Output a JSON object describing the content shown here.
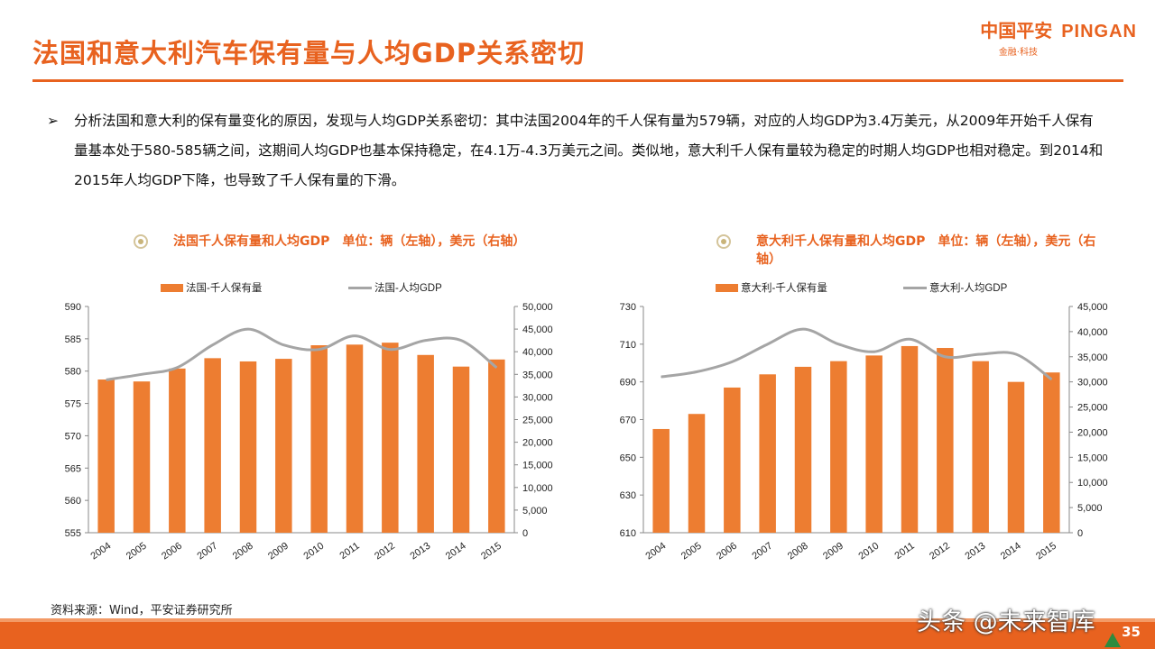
{
  "header": {
    "title": "法国和意大利汽车保有量与人均GDP关系密切",
    "logo_cn": "中国平安",
    "logo_en": "PINGAN",
    "logo_sub": "金融·科技"
  },
  "bullet": {
    "marker": "➢",
    "text": "分析法国和意大利的保有量变化的原因，发现与人均GDP关系密切：其中法国2004年的千人保有量为579辆，对应的人均GDP为3.4万美元，从2009年开始千人保有量基本处于580-585辆之间，这期间人均GDP也基本保持稳定，在4.1万-4.3万美元之间。类似地，意大利千人保有量较为稳定的时期人均GDP也相对稳定。到2014和2015年人均GDP下降，也导致了千人保有量的下滑。"
  },
  "chart_titles": {
    "france": "法国千人保有量和人均GDP　单位：辆（左轴），美元（右轴）",
    "italy": "意大利千人保有量和人均GDP　单位：辆（左轴），美元（右轴）"
  },
  "colors": {
    "accent": "#E8621F",
    "bar": "#ED7D31",
    "line": "#A5A5A5"
  },
  "chart_data": [
    {
      "type": "bar",
      "id": "france",
      "categories": [
        "2004",
        "2005",
        "2006",
        "2007",
        "2008",
        "2009",
        "2010",
        "2011",
        "2012",
        "2013",
        "2014",
        "2015"
      ],
      "series": [
        {
          "name": "法国-千人保有量",
          "axis": "left",
          "type": "bar",
          "values": [
            578.7,
            578.4,
            580.4,
            582.0,
            581.5,
            581.9,
            584.0,
            584.1,
            584.4,
            582.5,
            580.7,
            581.8
          ]
        },
        {
          "name": "法国-人均GDP",
          "axis": "right",
          "type": "line",
          "values": [
            33800,
            35000,
            36500,
            41500,
            45000,
            41500,
            40500,
            43500,
            40500,
            42500,
            42500,
            36500
          ]
        }
      ],
      "y_left": {
        "min": 555,
        "max": 590,
        "ticks": [
          555,
          560,
          565,
          570,
          575,
          580,
          585,
          590
        ],
        "labels": [
          "555",
          "560",
          "565",
          "570",
          "575",
          "580",
          "585",
          "590"
        ]
      },
      "y_right": {
        "min": 0,
        "max": 50000,
        "ticks": [
          0,
          5000,
          10000,
          15000,
          20000,
          25000,
          30000,
          35000,
          40000,
          45000,
          50000
        ],
        "labels": [
          "0",
          "5,000",
          "10,000",
          "15,000",
          "20,000",
          "25,000",
          "30,000",
          "35,000",
          "40,000",
          "45,000",
          "50,000"
        ]
      },
      "legend": "top"
    },
    {
      "type": "bar",
      "id": "italy",
      "categories": [
        "2004",
        "2005",
        "2006",
        "2007",
        "2008",
        "2009",
        "2010",
        "2011",
        "2012",
        "2013",
        "2014",
        "2015"
      ],
      "series": [
        {
          "name": "意大利-千人保有量",
          "axis": "left",
          "type": "bar",
          "values": [
            665,
            673,
            687,
            694,
            698,
            701,
            704,
            709,
            708,
            701,
            690,
            695
          ]
        },
        {
          "name": "意大利-人均GDP",
          "axis": "right",
          "type": "line",
          "values": [
            31000,
            32000,
            34000,
            37500,
            40500,
            37500,
            36000,
            38500,
            35000,
            35500,
            35500,
            30500
          ]
        }
      ],
      "y_left": {
        "min": 610,
        "max": 730,
        "ticks": [
          610,
          630,
          650,
          670,
          690,
          710,
          730
        ],
        "labels": [
          "610",
          "630",
          "650",
          "670",
          "690",
          "710",
          "730"
        ]
      },
      "y_right": {
        "min": 0,
        "max": 45000,
        "ticks": [
          0,
          5000,
          10000,
          15000,
          20000,
          25000,
          30000,
          35000,
          40000,
          45000
        ],
        "labels": [
          "0",
          "5,000",
          "10,000",
          "15,000",
          "20,000",
          "25,000",
          "30,000",
          "35,000",
          "40,000",
          "45,000"
        ]
      },
      "legend": "top"
    }
  ],
  "footer": {
    "source": "资料来源：Wind，平安证券研究所",
    "watermark": "头条 @未来智库",
    "page_number": "35"
  }
}
